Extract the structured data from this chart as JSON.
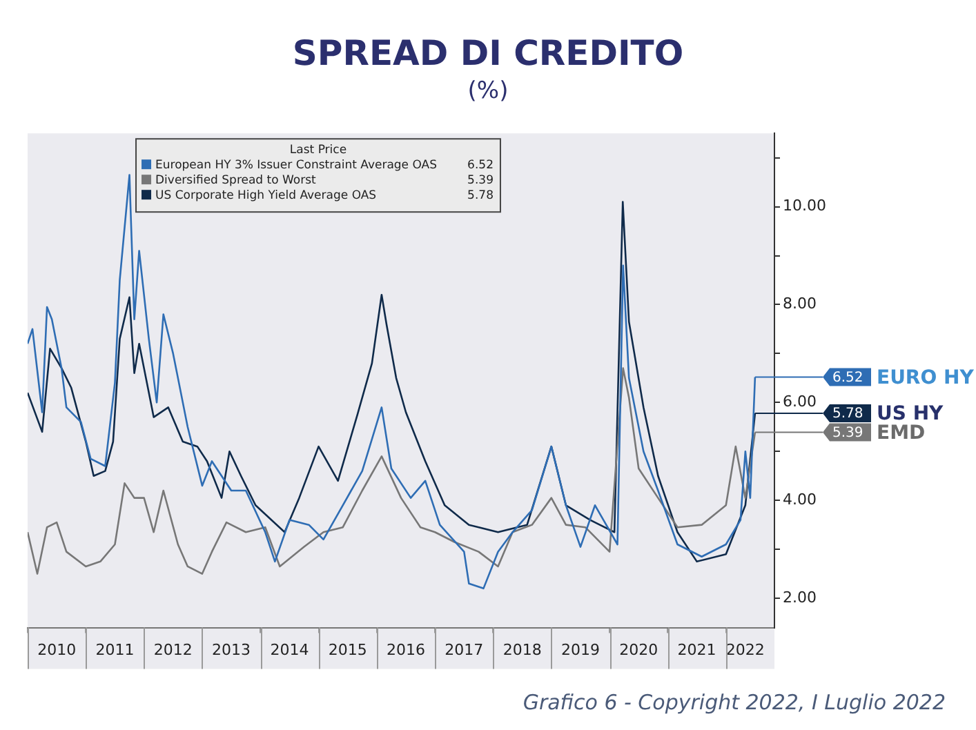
{
  "chart_data": {
    "type": "line",
    "title": "SPREAD DI CREDITO",
    "subtitle": "(%)",
    "legend_title": "Last Price",
    "legend": "top",
    "marker": "none",
    "line_style": "solid",
    "xlim": [
      "2010-01",
      "2022-11"
    ],
    "xticks": [
      {
        "value": "2010-01",
        "label": null
      },
      {
        "value": "2010-07",
        "label": "2010"
      },
      {
        "value": "2011-01",
        "label": null
      },
      {
        "value": "2011-07",
        "label": "2011"
      },
      {
        "value": "2012-01",
        "label": null
      },
      {
        "value": "2012-07",
        "label": "2012"
      },
      {
        "value": "2013-01",
        "label": null
      },
      {
        "value": "2013-07",
        "label": "2013"
      },
      {
        "value": "2014-01",
        "label": null
      },
      {
        "value": "2014-07",
        "label": "2014"
      },
      {
        "value": "2015-01",
        "label": null
      },
      {
        "value": "2015-07",
        "label": "2015"
      },
      {
        "value": "2016-01",
        "label": null
      },
      {
        "value": "2016-07",
        "label": "2016"
      },
      {
        "value": "2017-01",
        "label": null
      },
      {
        "value": "2017-07",
        "label": "2017"
      },
      {
        "value": "2018-01",
        "label": null
      },
      {
        "value": "2018-07",
        "label": "2018"
      },
      {
        "value": "2019-01",
        "label": null
      },
      {
        "value": "2019-07",
        "label": "2019"
      },
      {
        "value": "2020-01",
        "label": null
      },
      {
        "value": "2020-07",
        "label": "2020"
      },
      {
        "value": "2021-01",
        "label": null
      },
      {
        "value": "2021-07",
        "label": "2021"
      },
      {
        "value": "2022-01",
        "label": null
      },
      {
        "value": "2022-05",
        "label": "2022"
      }
    ],
    "ylim": [
      1.4,
      11.5
    ],
    "yticks": [
      {
        "value": 2,
        "label": "2.00"
      },
      {
        "value": 3,
        "label": null
      },
      {
        "value": 4,
        "label": "4.00"
      },
      {
        "value": 5,
        "label": null
      },
      {
        "value": 6,
        "label": "6.00"
      },
      {
        "value": 7,
        "label": null
      },
      {
        "value": 8,
        "label": "8.00"
      },
      {
        "value": 9,
        "label": null
      },
      {
        "value": 10,
        "label": "10.00"
      },
      {
        "value": 11,
        "label": null
      }
    ],
    "series": [
      {
        "name": "European HY 3% Issuer Constraint Average OAS",
        "color": "#2e6db4",
        "x": [
          "2010-01",
          "2010-02",
          "2010-04",
          "2010-05",
          "2010-06",
          "2010-08",
          "2010-09",
          "2010-12",
          "2011-02",
          "2011-05",
          "2011-07",
          "2011-08",
          "2011-10",
          "2011-11",
          "2011-12",
          "2012-02",
          "2012-03-20",
          "2012-05",
          "2012-07",
          "2012-10",
          "2013-01",
          "2013-03",
          "2013-07",
          "2013-10",
          "2014-02",
          "2014-04",
          "2014-07",
          "2014-11",
          "2015-02",
          "2015-06",
          "2015-10",
          "2016-02",
          "2016-04",
          "2016-08",
          "2016-11",
          "2017-02",
          "2017-07",
          "2017-08",
          "2017-11",
          "2018-02",
          "2018-05",
          "2018-09",
          "2019-01",
          "2019-04",
          "2019-07",
          "2019-10",
          "2020-02-20",
          "2020-03-25",
          "2020-05",
          "2020-08",
          "2020-11",
          "2021-03",
          "2021-08",
          "2022-01",
          "2022-04",
          "2022-05",
          "2022-06",
          "2022-07"
        ],
        "values": [
          7.2,
          7.5,
          5.8,
          7.95,
          7.7,
          6.7,
          5.9,
          5.6,
          4.85,
          4.7,
          6.4,
          8.5,
          10.65,
          7.7,
          9.1,
          7.3,
          6.0,
          7.8,
          7.0,
          5.5,
          4.3,
          4.8,
          4.2,
          4.2,
          3.35,
          2.75,
          3.6,
          3.5,
          3.2,
          3.9,
          4.6,
          5.9,
          4.65,
          4.05,
          4.4,
          3.5,
          2.95,
          2.3,
          2.2,
          2.95,
          3.35,
          3.8,
          5.1,
          3.9,
          3.05,
          3.9,
          3.1,
          8.8,
          6.5,
          5.0,
          4.2,
          3.1,
          2.85,
          3.1,
          3.6,
          5.0,
          4.05,
          6.52
        ],
        "value_labels": [
          null,
          null,
          null,
          null,
          null,
          null,
          null,
          null,
          null,
          null,
          null,
          null,
          null,
          null,
          null,
          null,
          null,
          null,
          null,
          null,
          null,
          null,
          null,
          null,
          null,
          null,
          null,
          null,
          null,
          null,
          null,
          null,
          null,
          null,
          null,
          null,
          null,
          null,
          null,
          null,
          null,
          null,
          null,
          null,
          null,
          null,
          null,
          null,
          null,
          null,
          null,
          null,
          null,
          null,
          null,
          null,
          null,
          "6.52"
        ]
      },
      {
        "name": "Diversified Spread to Worst",
        "color": "#777777",
        "x": [
          "2010-01",
          "2010-03",
          "2010-05",
          "2010-07",
          "2010-09",
          "2011-01",
          "2011-04",
          "2011-07",
          "2011-09",
          "2011-11",
          "2012-01",
          "2012-03",
          "2012-05",
          "2012-08",
          "2012-10",
          "2013-01",
          "2013-03",
          "2013-06",
          "2013-10",
          "2014-02",
          "2014-05",
          "2014-10",
          "2015-02",
          "2015-06",
          "2015-10",
          "2016-02",
          "2016-06",
          "2016-10",
          "2017-01",
          "2017-05",
          "2017-10",
          "2018-02",
          "2018-05",
          "2018-09",
          "2019-01",
          "2019-04",
          "2019-08",
          "2020-01",
          "2020-03-25",
          "2020-05",
          "2020-07",
          "2020-11",
          "2021-03",
          "2021-08",
          "2022-01",
          "2022-03",
          "2022-05",
          "2022-07"
        ],
        "values": [
          3.35,
          2.5,
          3.45,
          3.55,
          2.95,
          2.65,
          2.75,
          3.1,
          4.35,
          4.05,
          4.05,
          3.35,
          4.2,
          3.1,
          2.65,
          2.5,
          2.95,
          3.55,
          3.35,
          3.45,
          2.65,
          3.05,
          3.35,
          3.45,
          4.2,
          4.9,
          4.05,
          3.45,
          3.35,
          3.15,
          2.95,
          2.65,
          3.35,
          3.5,
          4.05,
          3.5,
          3.45,
          2.95,
          6.7,
          6.1,
          4.65,
          4.05,
          3.45,
          3.5,
          3.9,
          5.1,
          4.05,
          5.39
        ],
        "value_labels": [
          null,
          null,
          null,
          null,
          null,
          null,
          null,
          null,
          null,
          null,
          null,
          null,
          null,
          null,
          null,
          null,
          null,
          null,
          null,
          null,
          null,
          null,
          null,
          null,
          null,
          null,
          null,
          null,
          null,
          null,
          null,
          null,
          null,
          null,
          null,
          null,
          null,
          null,
          null,
          null,
          null,
          null,
          null,
          null,
          null,
          null,
          null,
          "5.39"
        ]
      },
      {
        "name": "US Corporate High Yield Average OAS",
        "color": "#0f2a4a",
        "x": [
          "2010-01",
          "2010-04",
          "2010-05-20",
          "2010-08",
          "2010-10",
          "2011-01",
          "2011-02-20",
          "2011-05",
          "2011-06-20",
          "2011-08",
          "2011-10",
          "2011-11",
          "2011-12",
          "2012-03",
          "2012-06",
          "2012-09",
          "2012-12",
          "2013-02",
          "2013-05",
          "2013-06-20",
          "2013-09",
          "2013-12",
          "2014-06",
          "2014-09",
          "2015-01",
          "2015-05",
          "2015-09",
          "2015-12",
          "2016-02",
          "2016-03",
          "2016-05",
          "2016-07",
          "2016-11",
          "2017-03",
          "2017-08",
          "2018-02",
          "2018-08",
          "2019-01",
          "2019-04",
          "2019-09",
          "2020-02",
          "2020-03-23",
          "2020-05",
          "2020-08",
          "2020-11",
          "2021-03",
          "2021-07",
          "2022-01",
          "2022-05",
          "2022-07"
        ],
        "values": [
          6.2,
          5.4,
          7.1,
          6.7,
          6.3,
          5.2,
          4.5,
          4.6,
          5.2,
          7.3,
          8.15,
          6.6,
          7.2,
          5.7,
          5.9,
          5.2,
          5.1,
          4.8,
          4.05,
          5.0,
          4.5,
          3.9,
          3.35,
          4.05,
          5.1,
          4.4,
          5.75,
          6.8,
          8.2,
          7.6,
          6.5,
          5.8,
          4.8,
          3.9,
          3.5,
          3.35,
          3.5,
          5.1,
          3.9,
          3.6,
          3.35,
          10.1,
          7.65,
          5.9,
          4.5,
          3.35,
          2.75,
          2.9,
          3.9,
          5.78
        ],
        "value_labels": [
          null,
          null,
          null,
          null,
          null,
          null,
          null,
          null,
          null,
          null,
          null,
          null,
          null,
          null,
          null,
          null,
          null,
          null,
          null,
          null,
          null,
          null,
          null,
          null,
          null,
          null,
          null,
          null,
          null,
          null,
          null,
          null,
          null,
          null,
          null,
          null,
          null,
          null,
          null,
          null,
          null,
          null,
          null,
          null,
          null,
          null,
          null,
          null,
          null,
          "5.78"
        ]
      }
    ],
    "annotations": [
      "EURO HY",
      "EMD",
      "US HY",
      "Grafico 6 - Copyright 2022, I Luglio 2022"
    ]
  }
}
